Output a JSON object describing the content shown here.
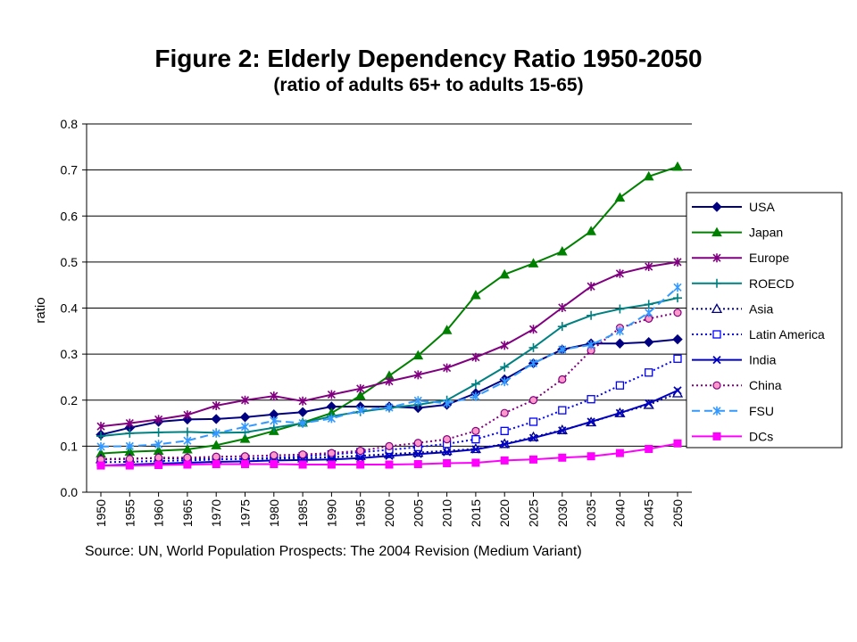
{
  "chart_data": {
    "type": "line",
    "title": "Figure 2: Elderly Dependency Ratio 1950-2050",
    "subtitle": "(ratio of adults 65+ to adults 15-65)",
    "xlabel": "",
    "ylabel": "ratio",
    "ylim": [
      0,
      0.8
    ],
    "yticks": [
      "0.0",
      "0.1",
      "0.2",
      "0.3",
      "0.4",
      "0.5",
      "0.6",
      "0.7",
      "0.8"
    ],
    "categories": [
      "1950",
      "1955",
      "1960",
      "1965",
      "1970",
      "1975",
      "1980",
      "1985",
      "1990",
      "1995",
      "2000",
      "2005",
      "2010",
      "2015",
      "2020",
      "2025",
      "2030",
      "2035",
      "2040",
      "2045",
      "2050"
    ],
    "grid": "horizontal",
    "legend_position": "right",
    "source": "Source: UN, World Population Prospects: The 2004 Revision (Medium Variant)",
    "series": [
      {
        "name": "USA",
        "color": "#000080",
        "marker": "diamond",
        "dash": "solid",
        "values": [
          0.125,
          0.14,
          0.153,
          0.158,
          0.159,
          0.163,
          0.169,
          0.174,
          0.186,
          0.186,
          0.186,
          0.183,
          0.19,
          0.215,
          0.245,
          0.28,
          0.31,
          0.323,
          0.323,
          0.326,
          0.332
        ]
      },
      {
        "name": "Japan",
        "color": "#008000",
        "marker": "triangle",
        "dash": "solid",
        "values": [
          0.084,
          0.088,
          0.09,
          0.093,
          0.102,
          0.116,
          0.133,
          0.151,
          0.172,
          0.21,
          0.253,
          0.297,
          0.352,
          0.428,
          0.473,
          0.497,
          0.523,
          0.567,
          0.64,
          0.686,
          0.707
        ]
      },
      {
        "name": "Europe",
        "color": "#800080",
        "marker": "asterisk",
        "dash": "solid",
        "values": [
          0.143,
          0.15,
          0.158,
          0.168,
          0.188,
          0.2,
          0.209,
          0.198,
          0.212,
          0.225,
          0.241,
          0.255,
          0.27,
          0.293,
          0.319,
          0.354,
          0.401,
          0.447,
          0.475,
          0.49,
          0.5
        ]
      },
      {
        "name": "ROECD",
        "color": "#008080",
        "marker": "plus",
        "dash": "solid",
        "values": [
          0.122,
          0.128,
          0.13,
          0.131,
          0.129,
          0.13,
          0.14,
          0.15,
          0.165,
          0.175,
          0.183,
          0.19,
          0.2,
          0.235,
          0.272,
          0.314,
          0.36,
          0.384,
          0.398,
          0.408,
          0.422
        ]
      },
      {
        "name": "Asia",
        "color": "#000080",
        "marker": "triangle-open",
        "dash": "dot",
        "values": [
          0.072,
          0.073,
          0.074,
          0.073,
          0.072,
          0.072,
          0.073,
          0.074,
          0.076,
          0.079,
          0.083,
          0.086,
          0.09,
          0.094,
          0.105,
          0.12,
          0.135,
          0.152,
          0.172,
          0.19,
          0.215
        ]
      },
      {
        "name": "Latin America",
        "color": "#0000ff",
        "marker": "square-open",
        "dash": "dot",
        "values": [
          0.065,
          0.066,
          0.068,
          0.069,
          0.071,
          0.073,
          0.075,
          0.078,
          0.082,
          0.087,
          0.092,
          0.098,
          0.105,
          0.115,
          0.133,
          0.153,
          0.178,
          0.202,
          0.232,
          0.26,
          0.29
        ]
      },
      {
        "name": "India",
        "color": "#0000c0",
        "marker": "x",
        "dash": "solid",
        "values": [
          0.058,
          0.06,
          0.062,
          0.064,
          0.066,
          0.067,
          0.069,
          0.07,
          0.071,
          0.074,
          0.079,
          0.083,
          0.087,
          0.093,
          0.104,
          0.118,
          0.134,
          0.153,
          0.172,
          0.193,
          0.221
        ]
      },
      {
        "name": "China",
        "color": "#800080",
        "marker": "circle-pink",
        "dash": "dot",
        "values": [
          0.071,
          0.072,
          0.075,
          0.075,
          0.077,
          0.078,
          0.08,
          0.082,
          0.085,
          0.09,
          0.1,
          0.107,
          0.115,
          0.133,
          0.172,
          0.2,
          0.245,
          0.308,
          0.357,
          0.377,
          0.39
        ]
      },
      {
        "name": "FSU",
        "color": "#3399ff",
        "marker": "asterisk",
        "dash": "dash",
        "values": [
          0.099,
          0.1,
          0.104,
          0.112,
          0.128,
          0.142,
          0.155,
          0.15,
          0.16,
          0.178,
          0.184,
          0.199,
          0.193,
          0.208,
          0.24,
          0.28,
          0.31,
          0.32,
          0.35,
          0.39,
          0.445
        ]
      },
      {
        "name": "DCs",
        "color": "#ff00ff",
        "marker": "square-filled",
        "dash": "solid",
        "values": [
          0.058,
          0.058,
          0.059,
          0.06,
          0.061,
          0.061,
          0.061,
          0.06,
          0.06,
          0.06,
          0.06,
          0.061,
          0.063,
          0.064,
          0.069,
          0.071,
          0.075,
          0.078,
          0.085,
          0.094,
          0.106
        ]
      }
    ]
  }
}
